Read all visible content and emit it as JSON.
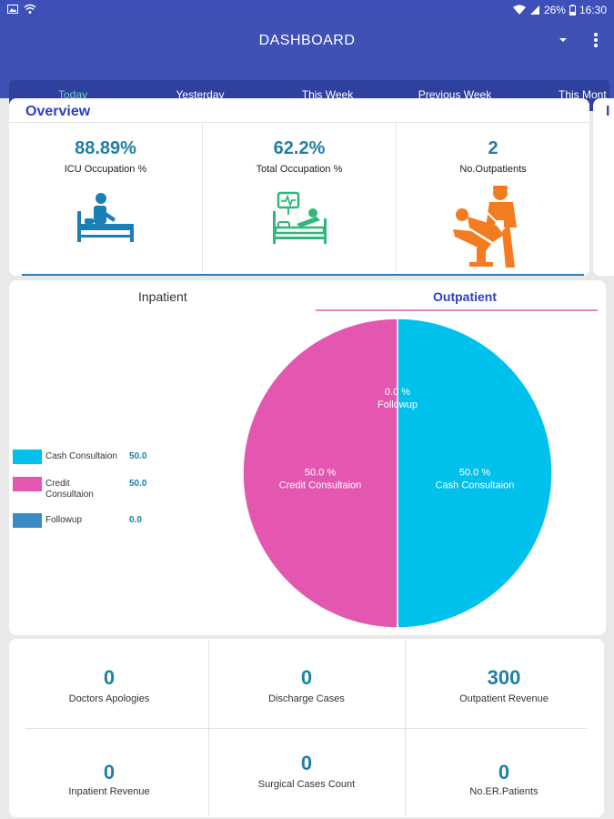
{
  "status_bar": {
    "battery": "26%",
    "time": "16:30"
  },
  "app_bar": {
    "title": "DASHBOARD"
  },
  "tabs": [
    "Today",
    "Yesterday",
    "This Week",
    "Previous Week",
    "This Mont"
  ],
  "overview": {
    "title": "Overview",
    "stats": [
      {
        "value": "88.89%",
        "label": "ICU Occupation %",
        "icon": "icu-patient-icon"
      },
      {
        "value": "62.2%",
        "label": "Total Occupation %",
        "icon": "hospital-bed-monitor-icon"
      },
      {
        "value": "2",
        "label": "No.Outpatients",
        "icon": "doctor-patient-icon"
      }
    ],
    "side_card_letter": "I"
  },
  "patient_tabs": {
    "inpatient": "Inpatient",
    "outpatient": "Outpatient"
  },
  "chart_data": {
    "type": "pie",
    "series": [
      {
        "name": "Cash Consultaion",
        "value": 50.0,
        "value_label": "50.0",
        "percent_label": "50.0 %",
        "color": "#00c0ec"
      },
      {
        "name": "Credit Consultaion",
        "value": 50.0,
        "value_label": "50.0",
        "percent_label": "50.0 %",
        "color": "#e357b0"
      },
      {
        "name": "Followup",
        "value": 0.0,
        "value_label": "0.0",
        "percent_label": "0.0 %",
        "color": "#3a8ac5"
      }
    ]
  },
  "metrics": [
    {
      "value": "0",
      "label": "Doctors Apologies"
    },
    {
      "value": "0",
      "label": "Discharge Cases"
    },
    {
      "value": "300",
      "label": "Outpatient Revenue"
    },
    {
      "value": "0",
      "label": "Inpatient Revenue"
    },
    {
      "value": "0",
      "label": "Surgical Cases Count"
    },
    {
      "value": "0",
      "label": "No.ER.Patients"
    }
  ]
}
